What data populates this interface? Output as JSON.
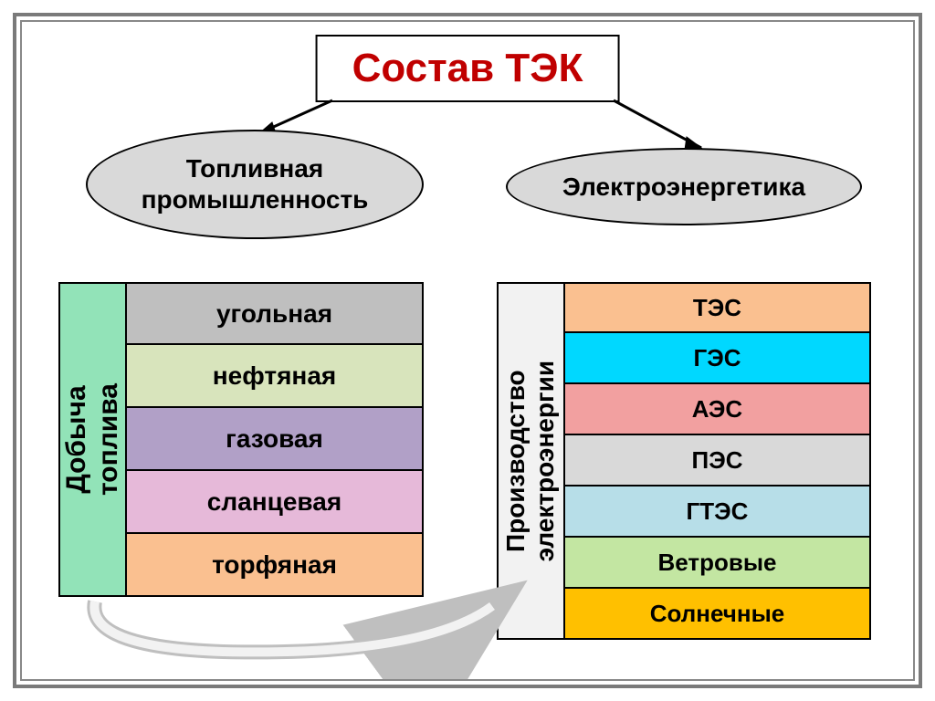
{
  "title": "Состав ТЭК",
  "title_color": "#c00000",
  "title_fontsize": 44,
  "title_border": "#000000",
  "background": "#ffffff",
  "outer_border": "#7a7a7a",
  "inner_border": "#888888",
  "branches": {
    "left": {
      "label": "Топливная\nпромышленность",
      "bg": "#d9d9d9",
      "fontsize": 28
    },
    "right": {
      "label": "Электроэнергетика",
      "bg": "#d9d9d9",
      "fontsize": 28
    }
  },
  "left_block": {
    "vlabel": "Добыча\nтоплива",
    "vlabel_bg": "#92e3b8",
    "row_fontsize": 28,
    "rows": [
      {
        "label": "угольная",
        "bg": "#bfbfbf"
      },
      {
        "label": "нефтяная",
        "bg": "#d8e4bc"
      },
      {
        "label": "газовая",
        "bg": "#b1a0c7"
      },
      {
        "label": "сланцевая",
        "bg": "#e6b9d9"
      },
      {
        "label": "торфяная",
        "bg": "#fac090"
      }
    ]
  },
  "right_block": {
    "vlabel": "Производство\nэлектроэнергии",
    "vlabel_bg": "#f2f2f2",
    "row_fontsize": 26,
    "rows": [
      {
        "label": "ТЭС",
        "bg": "#fac090"
      },
      {
        "label": "ГЭС",
        "bg": "#00d8ff"
      },
      {
        "label": "АЭС",
        "bg": "#f2a0a0"
      },
      {
        "label": "ПЭС",
        "bg": "#d9d9d9"
      },
      {
        "label": "ГТЭС",
        "bg": "#b7dee8"
      },
      {
        "label": "Ветровые",
        "bg": "#c3e6a2"
      },
      {
        "label": "Солнечные",
        "bg": "#ffc000"
      }
    ]
  },
  "arrows": {
    "color": "#000000"
  },
  "connector": {
    "stroke": "#bfbfbf",
    "fill": "#f2f2f2"
  }
}
